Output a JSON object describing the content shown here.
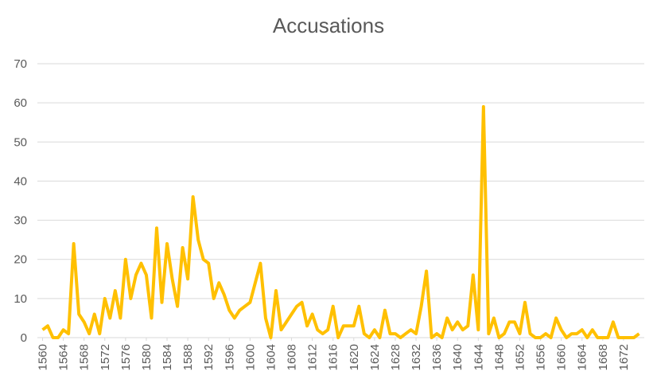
{
  "chart_data": {
    "type": "line",
    "title": "Accusations",
    "x": [
      1560,
      1561,
      1562,
      1563,
      1564,
      1565,
      1566,
      1567,
      1568,
      1569,
      1570,
      1571,
      1572,
      1573,
      1574,
      1575,
      1576,
      1577,
      1578,
      1579,
      1580,
      1581,
      1582,
      1583,
      1584,
      1585,
      1586,
      1587,
      1588,
      1589,
      1590,
      1591,
      1592,
      1593,
      1594,
      1595,
      1596,
      1597,
      1598,
      1599,
      1600,
      1601,
      1602,
      1603,
      1604,
      1605,
      1606,
      1607,
      1608,
      1609,
      1610,
      1611,
      1612,
      1613,
      1614,
      1615,
      1616,
      1617,
      1618,
      1619,
      1620,
      1621,
      1622,
      1623,
      1624,
      1625,
      1626,
      1627,
      1628,
      1629,
      1630,
      1631,
      1632,
      1633,
      1634,
      1635,
      1636,
      1637,
      1638,
      1639,
      1640,
      1641,
      1642,
      1643,
      1644,
      1645,
      1646,
      1647,
      1648,
      1649,
      1650,
      1651,
      1652,
      1653,
      1654,
      1655,
      1656,
      1657,
      1658,
      1659,
      1660,
      1661,
      1662,
      1663,
      1664,
      1665,
      1666,
      1667,
      1668,
      1669,
      1670,
      1671,
      1672,
      1673,
      1674,
      1675
    ],
    "series": [
      {
        "name": "Accusations",
        "color": "#ffc000",
        "values": [
          2,
          3,
          0,
          0,
          2,
          1,
          24,
          6,
          4,
          1,
          6,
          1,
          10,
          5,
          12,
          5,
          20,
          10,
          16,
          19,
          16,
          5,
          28,
          9,
          24,
          15,
          8,
          23,
          15,
          36,
          25,
          20,
          19,
          10,
          14,
          11,
          7,
          5,
          7,
          8,
          9,
          14,
          19,
          5,
          0,
          12,
          2,
          4,
          6,
          8,
          9,
          3,
          6,
          2,
          1,
          2,
          8,
          0,
          3,
          3,
          3,
          8,
          1,
          0,
          2,
          0,
          7,
          1,
          1,
          0,
          1,
          2,
          1,
          8,
          17,
          0,
          1,
          0,
          5,
          2,
          4,
          2,
          3,
          16,
          2,
          59,
          1,
          5,
          0,
          1,
          4,
          4,
          1,
          9,
          1,
          0,
          0,
          1,
          0,
          5,
          2,
          0,
          1,
          1,
          2,
          0,
          2,
          0,
          0,
          0,
          4,
          0,
          0,
          0,
          0,
          1
        ]
      }
    ],
    "xlim": [
      1559,
      1676
    ],
    "xticks": [
      1560,
      1564,
      1568,
      1572,
      1576,
      1580,
      1584,
      1588,
      1592,
      1596,
      1600,
      1604,
      1608,
      1612,
      1616,
      1620,
      1624,
      1628,
      1632,
      1636,
      1640,
      1644,
      1648,
      1652,
      1656,
      1660,
      1664,
      1668,
      1672
    ],
    "ylim": [
      0,
      70
    ],
    "yticks": [
      0,
      10,
      20,
      30,
      40,
      50,
      60,
      70
    ],
    "grid": true
  }
}
